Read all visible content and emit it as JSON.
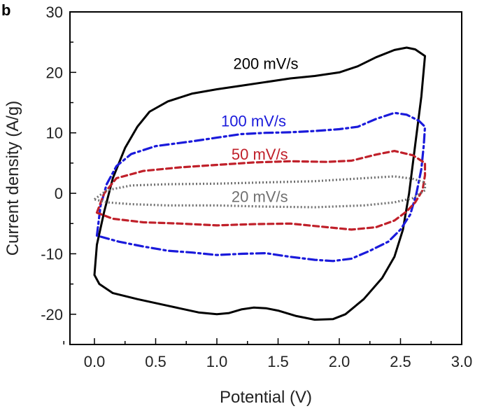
{
  "panel_label": "b",
  "chart_data": {
    "type": "line",
    "xlabel": "Potential (V)",
    "ylabel": "Current density (A/g)",
    "xlim": [
      -0.2,
      3.0
    ],
    "ylim": [
      -25,
      30
    ],
    "x_ticks": [
      0.0,
      0.5,
      1.0,
      1.5,
      2.0,
      2.5,
      3.0
    ],
    "x_tick_labels": [
      "0.0",
      "0.5",
      "1.0",
      "1.5",
      "2.0",
      "2.5",
      "3.0"
    ],
    "y_ticks": [
      -20,
      -10,
      0,
      10,
      20,
      30
    ],
    "y_tick_labels": [
      "-20",
      "-10",
      "0",
      "10",
      "20",
      "30"
    ],
    "grid": false,
    "legend": "none",
    "series": [
      {
        "name": "200 mV/s",
        "color": "#000000",
        "dash": "solid",
        "points": [
          [
            0.0,
            -13.5
          ],
          [
            0.02,
            -8.5
          ],
          [
            0.08,
            -3.0
          ],
          [
            0.15,
            2.5
          ],
          [
            0.25,
            7.5
          ],
          [
            0.35,
            11.0
          ],
          [
            0.45,
            13.5
          ],
          [
            0.6,
            15.2
          ],
          [
            0.8,
            16.5
          ],
          [
            1.0,
            17.2
          ],
          [
            1.2,
            17.8
          ],
          [
            1.4,
            18.4
          ],
          [
            1.6,
            19.0
          ],
          [
            1.8,
            19.4
          ],
          [
            2.0,
            20.0
          ],
          [
            2.15,
            21.0
          ],
          [
            2.3,
            22.5
          ],
          [
            2.45,
            23.7
          ],
          [
            2.55,
            24.1
          ],
          [
            2.62,
            23.8
          ],
          [
            2.7,
            22.7
          ],
          [
            2.67,
            16.0
          ],
          [
            2.62,
            8.0
          ],
          [
            2.57,
            0.0
          ],
          [
            2.52,
            -6.0
          ],
          [
            2.45,
            -10.5
          ],
          [
            2.35,
            -14.0
          ],
          [
            2.2,
            -17.5
          ],
          [
            2.05,
            -20.0
          ],
          [
            1.95,
            -20.8
          ],
          [
            1.8,
            -20.9
          ],
          [
            1.65,
            -20.3
          ],
          [
            1.5,
            -19.4
          ],
          [
            1.4,
            -19.0
          ],
          [
            1.3,
            -18.9
          ],
          [
            1.2,
            -19.2
          ],
          [
            1.1,
            -19.8
          ],
          [
            1.0,
            -20.0
          ],
          [
            0.85,
            -19.7
          ],
          [
            0.6,
            -18.6
          ],
          [
            0.35,
            -17.5
          ],
          [
            0.15,
            -16.5
          ],
          [
            0.04,
            -15.0
          ],
          [
            0.0,
            -13.5
          ]
        ]
      },
      {
        "name": "100 mV/s",
        "color": "#1a1adb",
        "dash": "12,5,3,5",
        "points": [
          [
            0.02,
            -7.0
          ],
          [
            0.05,
            -2.0
          ],
          [
            0.1,
            1.5
          ],
          [
            0.18,
            4.5
          ],
          [
            0.3,
            6.5
          ],
          [
            0.5,
            7.8
          ],
          [
            0.8,
            8.6
          ],
          [
            1.0,
            9.2
          ],
          [
            1.2,
            9.8
          ],
          [
            1.4,
            10.0
          ],
          [
            1.6,
            10.1
          ],
          [
            1.8,
            10.3
          ],
          [
            2.0,
            10.6
          ],
          [
            2.15,
            11.0
          ],
          [
            2.3,
            12.3
          ],
          [
            2.45,
            13.3
          ],
          [
            2.55,
            13.0
          ],
          [
            2.65,
            12.0
          ],
          [
            2.7,
            11.0
          ],
          [
            2.69,
            8.0
          ],
          [
            2.67,
            4.0
          ],
          [
            2.63,
            0.0
          ],
          [
            2.58,
            -3.5
          ],
          [
            2.5,
            -6.0
          ],
          [
            2.4,
            -8.0
          ],
          [
            2.25,
            -9.5
          ],
          [
            2.1,
            -10.8
          ],
          [
            1.95,
            -11.2
          ],
          [
            1.8,
            -11.0
          ],
          [
            1.6,
            -10.5
          ],
          [
            1.4,
            -9.9
          ],
          [
            1.2,
            -10.0
          ],
          [
            1.0,
            -10.2
          ],
          [
            0.8,
            -9.8
          ],
          [
            0.6,
            -9.5
          ],
          [
            0.4,
            -8.8
          ],
          [
            0.2,
            -8.0
          ],
          [
            0.02,
            -7.0
          ]
        ]
      },
      {
        "name": "50 mV/s",
        "color": "#c0202a",
        "dash": "8,5",
        "points": [
          [
            0.02,
            -3.2
          ],
          [
            0.08,
            0.0
          ],
          [
            0.18,
            2.5
          ],
          [
            0.4,
            3.7
          ],
          [
            0.7,
            4.3
          ],
          [
            1.0,
            4.7
          ],
          [
            1.3,
            5.1
          ],
          [
            1.6,
            5.3
          ],
          [
            1.9,
            5.2
          ],
          [
            2.1,
            5.4
          ],
          [
            2.3,
            6.4
          ],
          [
            2.45,
            7.0
          ],
          [
            2.6,
            6.3
          ],
          [
            2.7,
            5.0
          ],
          [
            2.7,
            3.0
          ],
          [
            2.68,
            0.5
          ],
          [
            2.62,
            -1.5
          ],
          [
            2.55,
            -3.0
          ],
          [
            2.45,
            -4.5
          ],
          [
            2.3,
            -5.6
          ],
          [
            2.1,
            -6.0
          ],
          [
            1.9,
            -5.6
          ],
          [
            1.6,
            -5.0
          ],
          [
            1.3,
            -5.1
          ],
          [
            1.0,
            -5.3
          ],
          [
            0.7,
            -5.0
          ],
          [
            0.4,
            -4.8
          ],
          [
            0.15,
            -4.2
          ],
          [
            0.02,
            -3.2
          ]
        ]
      },
      {
        "name": "20 mV/s",
        "color": "#707070",
        "dash": "2,3",
        "points": [
          [
            0.0,
            -1.0
          ],
          [
            0.1,
            0.5
          ],
          [
            0.3,
            1.3
          ],
          [
            0.6,
            1.5
          ],
          [
            1.0,
            1.6
          ],
          [
            1.4,
            1.8
          ],
          [
            1.8,
            2.0
          ],
          [
            2.2,
            2.5
          ],
          [
            2.45,
            2.8
          ],
          [
            2.6,
            2.4
          ],
          [
            2.7,
            1.8
          ],
          [
            2.7,
            0.5
          ],
          [
            2.6,
            -0.8
          ],
          [
            2.45,
            -1.5
          ],
          [
            2.2,
            -2.0
          ],
          [
            1.8,
            -2.3
          ],
          [
            1.4,
            -2.2
          ],
          [
            1.0,
            -2.0
          ],
          [
            0.6,
            -2.0
          ],
          [
            0.3,
            -1.8
          ],
          [
            0.1,
            -1.5
          ],
          [
            0.0,
            -1.0
          ]
        ]
      }
    ],
    "annotations": [
      {
        "text": "200 mV/s",
        "x": 1.4,
        "y": 21.5,
        "color": "#000000"
      },
      {
        "text": "100 mV/s",
        "x": 1.3,
        "y": 12.0,
        "color": "#1a1adb"
      },
      {
        "text": "50 mV/s",
        "x": 1.35,
        "y": 6.5,
        "color": "#c0202a"
      },
      {
        "text": "20 mV/s",
        "x": 1.35,
        "y": -0.5,
        "color": "#707070"
      }
    ]
  }
}
